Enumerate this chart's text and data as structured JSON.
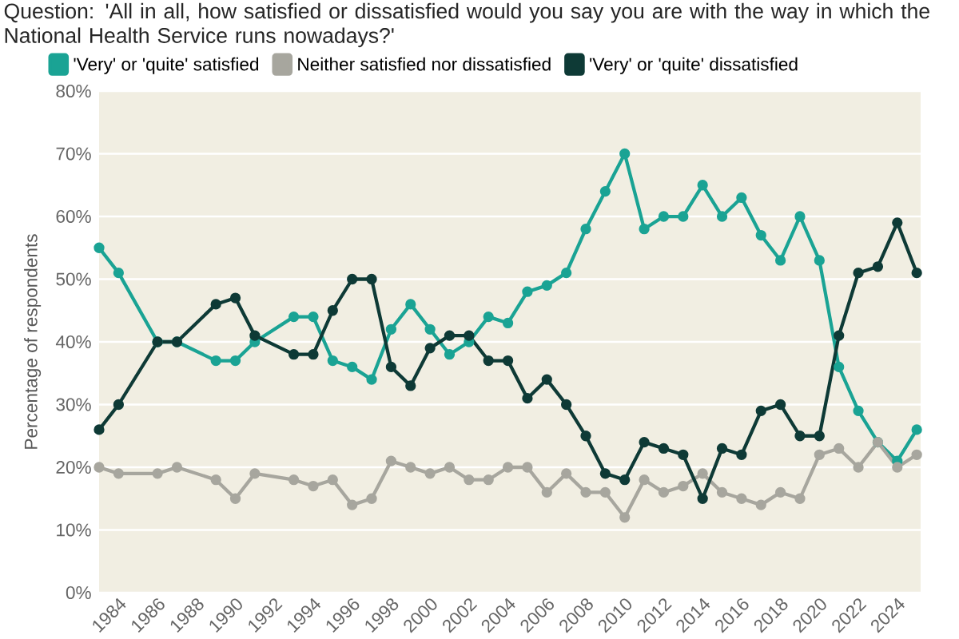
{
  "chart_data": {
    "type": "line",
    "title": "Question: 'All in all, how satisfied or dissatisfied would you say you are with the way in which the National Health Service runs nowadays?'",
    "ylabel": "Percentage of respondents",
    "x": [
      1983,
      1984,
      1986,
      1987,
      1989,
      1990,
      1991,
      1993,
      1994,
      1995,
      1996,
      1997,
      1998,
      1999,
      2000,
      2001,
      2002,
      2003,
      2004,
      2005,
      2006,
      2007,
      2008,
      2009,
      2010,
      2011,
      2012,
      2013,
      2014,
      2015,
      2016,
      2017,
      2018,
      2019,
      2020,
      2021,
      2022,
      2023,
      2024,
      2025
    ],
    "series": [
      {
        "name": "'Very' or 'quite' satisfied",
        "color": "#1aa394",
        "values": [
          55,
          51,
          40,
          40,
          37,
          37,
          40,
          44,
          44,
          37,
          36,
          34,
          42,
          46,
          42,
          38,
          40,
          44,
          43,
          48,
          49,
          51,
          58,
          64,
          70,
          58,
          60,
          60,
          65,
          60,
          63,
          57,
          53,
          60,
          53,
          36,
          29,
          24,
          21,
          26
        ]
      },
      {
        "name": "Neither satisfied nor dissatisfied",
        "color": "#a7a69e",
        "values": [
          20,
          19,
          19,
          20,
          18,
          15,
          19,
          18,
          17,
          18,
          14,
          15,
          21,
          20,
          19,
          20,
          18,
          18,
          20,
          20,
          16,
          19,
          16,
          16,
          12,
          18,
          16,
          17,
          19,
          16,
          15,
          14,
          16,
          15,
          22,
          23,
          20,
          24,
          20,
          22
        ]
      },
      {
        "name": "'Very' or 'quite' dissatisfied",
        "color": "#0e3a36",
        "values": [
          26,
          30,
          40,
          40,
          46,
          47,
          41,
          38,
          38,
          45,
          50,
          50,
          36,
          33,
          39,
          41,
          41,
          37,
          37,
          31,
          34,
          30,
          25,
          19,
          18,
          24,
          23,
          22,
          15,
          23,
          22,
          29,
          30,
          25,
          25,
          41,
          51,
          52,
          59,
          51
        ]
      }
    ],
    "xlim": [
      1983,
      2025.2
    ],
    "xticks": [
      1984,
      1986,
      1988,
      1990,
      1992,
      1994,
      1996,
      1998,
      2000,
      2002,
      2004,
      2006,
      2008,
      2010,
      2012,
      2014,
      2016,
      2018,
      2020,
      2022,
      2024
    ],
    "ylim": [
      0,
      80
    ],
    "yticks": [
      {
        "value": 0,
        "label": "0%"
      },
      {
        "value": 10,
        "label": "10%"
      },
      {
        "value": 20,
        "label": "20%"
      },
      {
        "value": 30,
        "label": "30%"
      },
      {
        "value": 40,
        "label": "40%"
      },
      {
        "value": 50,
        "label": "50%"
      },
      {
        "value": 60,
        "label": "60%"
      },
      {
        "value": 70,
        "label": "70%"
      },
      {
        "value": 80,
        "label": "80%"
      }
    ],
    "grid": "y",
    "legend": "top left",
    "marker": "circle",
    "line_style": "solid"
  }
}
